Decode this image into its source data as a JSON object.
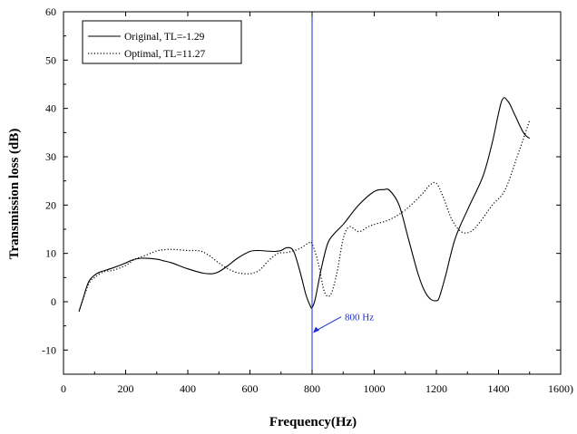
{
  "chart_data": {
    "type": "line",
    "xlabel": "Frequency(Hz)",
    "ylabel": "Transmission loss (dB)",
    "xlim": [
      0,
      1600
    ],
    "ylim": [
      -15,
      60
    ],
    "xticks": [
      0,
      200,
      400,
      600,
      800,
      1000,
      1200,
      1400,
      1600
    ],
    "xtick_labels": [
      "0",
      "200",
      "400",
      "600",
      "800",
      "1000",
      "1200",
      "1400",
      "1600)"
    ],
    "yticks": [
      -10,
      0,
      10,
      20,
      30,
      40,
      50,
      60
    ],
    "ytick_labels": [
      "-10",
      "0",
      "10",
      "20",
      "30",
      "40",
      "50",
      "60"
    ],
    "grid": false,
    "legend_position": "top-left",
    "series": [
      {
        "name": "Original, TL=-1.29",
        "style": "solid",
        "color": "#000000",
        "x": [
          50,
          60,
          80,
          100,
          120,
          150,
          180,
          200,
          220,
          250,
          300,
          320,
          350,
          400,
          450,
          480,
          500,
          530,
          560,
          600,
          630,
          650,
          680,
          700,
          720,
          740,
          760,
          780,
          795,
          800,
          810,
          830,
          850,
          870,
          900,
          950,
          1000,
          1030,
          1050,
          1080,
          1110,
          1140,
          1160,
          1180,
          1200,
          1210,
          1230,
          1260,
          1300,
          1350,
          1380,
          1410,
          1430,
          1450,
          1480,
          1500
        ],
        "y": [
          -2,
          0,
          4,
          5.5,
          6.2,
          6.8,
          7.5,
          8,
          8.6,
          9,
          8.8,
          8.5,
          8,
          6.8,
          5.9,
          5.8,
          6.2,
          7.5,
          9,
          10.4,
          10.6,
          10.5,
          10.4,
          10.6,
          11.2,
          10.5,
          6.5,
          1.5,
          -1,
          -1.2,
          0.5,
          7,
          12,
          14,
          16,
          20,
          22.8,
          23.2,
          23,
          20,
          13,
          6,
          2.5,
          0.6,
          0.2,
          1,
          5.5,
          13,
          19,
          26,
          33,
          41.5,
          41.5,
          39,
          35,
          33.8
        ]
      },
      {
        "name": "Optimal, TL=11.27",
        "style": "dotted",
        "color": "#000000",
        "x": [
          50,
          80,
          100,
          130,
          160,
          200,
          230,
          260,
          300,
          330,
          360,
          400,
          440,
          470,
          500,
          530,
          560,
          600,
          630,
          660,
          690,
          720,
          760,
          790,
          800,
          820,
          840,
          860,
          880,
          900,
          920,
          950,
          980,
          1000,
          1050,
          1100,
          1150,
          1180,
          1200,
          1220,
          1250,
          1280,
          1310,
          1340,
          1380,
          1420,
          1460,
          1500
        ],
        "y": [
          -2,
          3.5,
          5,
          6.2,
          6.5,
          7.5,
          8.8,
          9.5,
          10.5,
          10.8,
          10.8,
          10.6,
          10.5,
          9.5,
          8,
          6.8,
          6,
          5.8,
          6.5,
          8.5,
          10,
          10.2,
          11,
          12.2,
          12,
          8,
          2,
          1.5,
          6,
          13,
          15.5,
          14.5,
          15.5,
          16,
          17,
          19,
          22,
          24.2,
          24.5,
          22,
          17,
          14.5,
          14.5,
          16.5,
          20,
          23,
          30,
          37.5
        ]
      }
    ],
    "annotations": [
      {
        "type": "vertical-line",
        "x": 800,
        "color": "#1f2bd0"
      },
      {
        "type": "label",
        "text": "800 Hz",
        "x": 800,
        "y": -6.5,
        "color": "#1f2bd0"
      }
    ]
  }
}
